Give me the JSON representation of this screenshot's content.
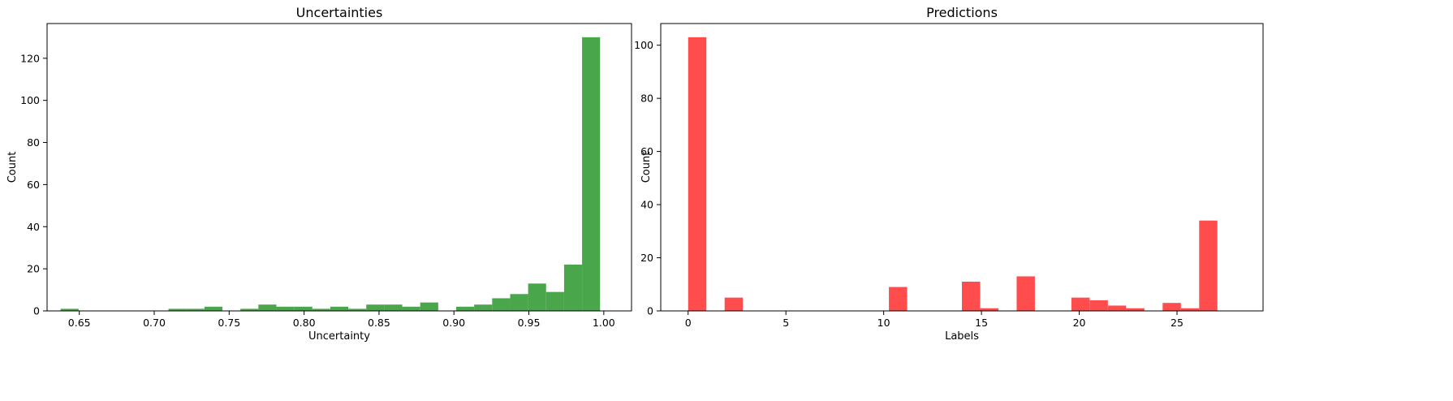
{
  "chart_data": [
    {
      "type": "bar",
      "title": "Uncertainties",
      "xlabel": "Uncertainty",
      "ylabel": "Count",
      "xlim": [
        0.6285,
        1.0185
      ],
      "ylim": [
        0,
        136.5
      ],
      "xticks": [
        0.65,
        0.7,
        0.75,
        0.8,
        0.85,
        0.9,
        0.95,
        1.0
      ],
      "xtick_labels": [
        "0.65",
        "0.70",
        "0.75",
        "0.80",
        "0.85",
        "0.90",
        "0.95",
        "1.00"
      ],
      "yticks": [
        0,
        20,
        40,
        60,
        80,
        100,
        120
      ],
      "ytick_labels": [
        "0",
        "20",
        "40",
        "60",
        "80",
        "100",
        "120"
      ],
      "bin_start": 0.6375,
      "bin_width": 0.012,
      "values": [
        1,
        0,
        0,
        0,
        0,
        0,
        1,
        1,
        2,
        0,
        1,
        3,
        2,
        2,
        1,
        2,
        1,
        3,
        3,
        2,
        4,
        0,
        2,
        3,
        6,
        8,
        13,
        9,
        22,
        130
      ],
      "color": "#4aa64a",
      "grid": false
    },
    {
      "type": "bar",
      "title": "Predictions",
      "xlabel": "Labels",
      "ylabel": "Count",
      "xlim": [
        -1.4,
        29.4
      ],
      "ylim": [
        0,
        108.15
      ],
      "xticks": [
        0,
        5,
        10,
        15,
        20,
        25
      ],
      "xtick_labels": [
        "0",
        "5",
        "10",
        "15",
        "20",
        "25"
      ],
      "yticks": [
        0,
        20,
        40,
        60,
        80,
        100
      ],
      "ytick_labels": [
        "0",
        "20",
        "40",
        "60",
        "80",
        "100"
      ],
      "bin_start": 0,
      "bin_width": 0.9333,
      "values": [
        103,
        0,
        5,
        0,
        0,
        0,
        0,
        0,
        0,
        0,
        0,
        9,
        0,
        0,
        0,
        11,
        1,
        0,
        13,
        0,
        0,
        5,
        4,
        2,
        1,
        0,
        3,
        1,
        34,
        0
      ],
      "color": "#ff4d4d",
      "grid": false
    }
  ]
}
